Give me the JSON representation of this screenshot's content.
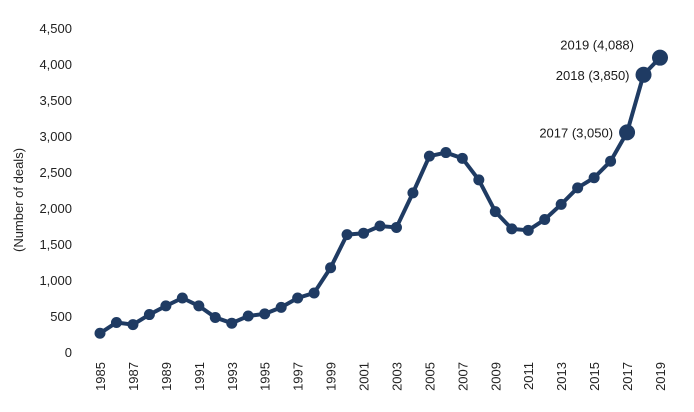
{
  "chart_data": {
    "type": "line",
    "ylabel": "(Number of deals)",
    "ylim": [
      0,
      4500
    ],
    "yticks": [
      0,
      500,
      1000,
      1500,
      2000,
      2500,
      3000,
      3500,
      4000,
      4500
    ],
    "ytick_labels": [
      "0",
      "500",
      "1,000",
      "1,500",
      "2,000",
      "2,500",
      "3,000",
      "3,500",
      "4,000",
      "4,500"
    ],
    "xlim": [
      1985,
      2019
    ],
    "xticks": [
      1985,
      1987,
      1989,
      1991,
      1993,
      1995,
      1997,
      1999,
      2001,
      2003,
      2005,
      2007,
      2009,
      2011,
      2013,
      2015,
      2017,
      2019
    ],
    "xtick_labels": [
      "1985",
      "1987",
      "1989",
      "1991",
      "1993",
      "1995",
      "1997",
      "1999",
      "2001",
      "2003",
      "2005",
      "2007",
      "2009",
      "2011",
      "2013",
      "2015",
      "2017",
      "2019"
    ],
    "grid": false,
    "line_color": "#1f3b63",
    "series": [
      {
        "x": [
          1985,
          1986,
          1987,
          1988,
          1989,
          1990,
          1991,
          1992,
          1993,
          1994,
          1995,
          1996,
          1997,
          1998,
          1999,
          2000,
          2001,
          2002,
          2003,
          2004,
          2005,
          2006,
          2007,
          2008,
          2009,
          2010,
          2011,
          2012,
          2013,
          2014,
          2015,
          2016,
          2017,
          2018,
          2019
        ],
        "values": [
          260,
          410,
          380,
          520,
          640,
          750,
          640,
          480,
          400,
          500,
          530,
          620,
          750,
          820,
          1170,
          1630,
          1650,
          1750,
          1730,
          2210,
          2720,
          2770,
          2690,
          2390,
          1950,
          1710,
          1690,
          1840,
          2050,
          2280,
          2420,
          2650,
          3050,
          3850,
          4088
        ]
      }
    ],
    "annotations": [
      {
        "x": 2017,
        "y": 3050,
        "text": "2017 (3,050)"
      },
      {
        "x": 2018,
        "y": 3850,
        "text": "2018 (3,850)"
      },
      {
        "x": 2019,
        "y": 4088,
        "text": "2019 (4,088)"
      }
    ]
  }
}
